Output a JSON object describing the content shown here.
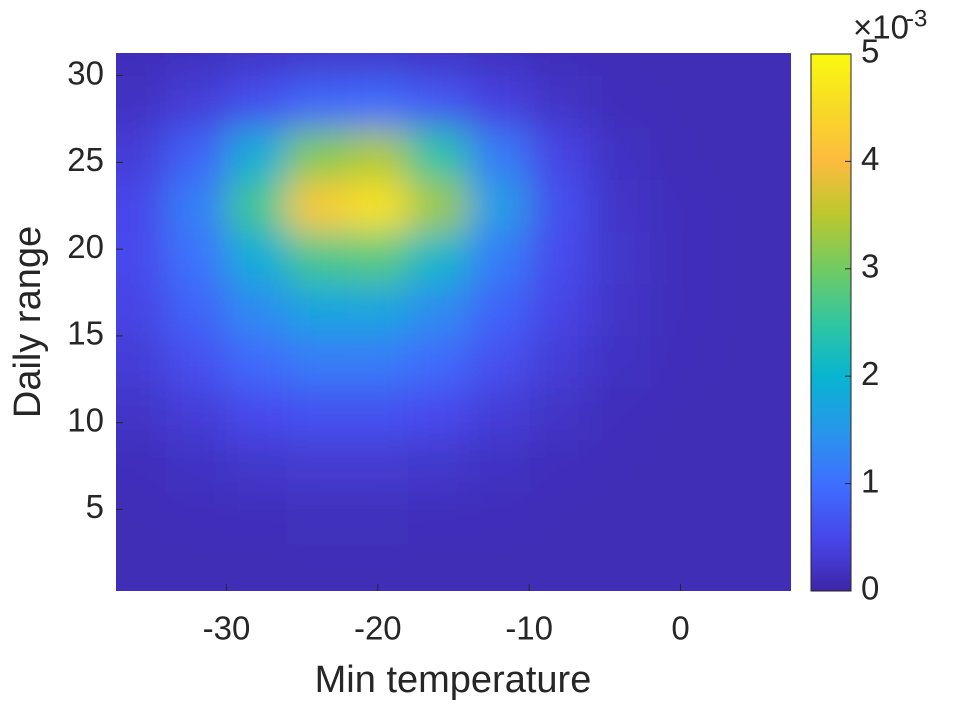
{
  "chart_data": {
    "type": "heatmap",
    "xlabel": "Min temperature",
    "ylabel": "Daily range",
    "x": [
      -36,
      -32,
      -28,
      -24,
      -20,
      -16,
      -12,
      -8,
      -4,
      0,
      4
    ],
    "y": [
      1.5,
      4.5,
      7.5,
      10.5,
      13.5,
      16.5,
      19.5,
      22.5,
      25.5,
      28.5,
      31.5
    ],
    "z": [
      [
        0.1,
        0.1,
        0.1,
        0.11,
        0.11,
        0.1,
        0.1,
        0.1,
        0.1,
        0.1,
        0.1
      ],
      [
        0.11,
        0.13,
        0.14,
        0.15,
        0.15,
        0.14,
        0.13,
        0.11,
        0.1,
        0.1,
        0.1
      ],
      [
        0.14,
        0.19,
        0.25,
        0.3,
        0.3,
        0.25,
        0.19,
        0.14,
        0.12,
        0.1,
        0.1
      ],
      [
        0.22,
        0.35,
        0.51,
        0.63,
        0.63,
        0.51,
        0.35,
        0.22,
        0.14,
        0.11,
        0.1
      ],
      [
        0.34,
        0.6,
        0.93,
        1.16,
        1.16,
        0.93,
        0.6,
        0.34,
        0.19,
        0.13,
        0.11
      ],
      [
        0.45,
        0.85,
        1.36,
        1.73,
        1.74,
        1.37,
        0.86,
        0.46,
        0.23,
        0.14,
        0.11
      ],
      [
        0.51,
        1.05,
        1.87,
        2.65,
        2.77,
        2.08,
        1.17,
        0.55,
        0.25,
        0.14,
        0.11
      ],
      [
        0.49,
        1.2,
        2.61,
        4.23,
        4.61,
        3.29,
        1.6,
        0.61,
        0.24,
        0.14,
        0.11
      ],
      [
        0.35,
        0.84,
        1.88,
        3.1,
        3.4,
        2.41,
        1.16,
        0.45,
        0.19,
        0.12,
        0.1
      ],
      [
        0.2,
        0.35,
        0.61,
        0.89,
        0.95,
        0.71,
        0.41,
        0.22,
        0.13,
        0.11,
        0.1
      ],
      [
        0.13,
        0.16,
        0.21,
        0.25,
        0.25,
        0.22,
        0.17,
        0.13,
        0.11,
        0.1,
        0.1
      ]
    ],
    "xlim": [
      -37.3,
      7.3
    ],
    "ylim": [
      0.3,
      31.3
    ],
    "xticks": [
      -30,
      -20,
      -10,
      0
    ],
    "yticks": [
      5,
      10,
      15,
      20,
      25,
      30
    ],
    "clim": [
      0,
      5
    ],
    "cticks": [
      0,
      1,
      2,
      3,
      4,
      5
    ],
    "colorbar_multiplier": "×10",
    "colorbar_exponent": "-3",
    "colormap": "parula"
  }
}
